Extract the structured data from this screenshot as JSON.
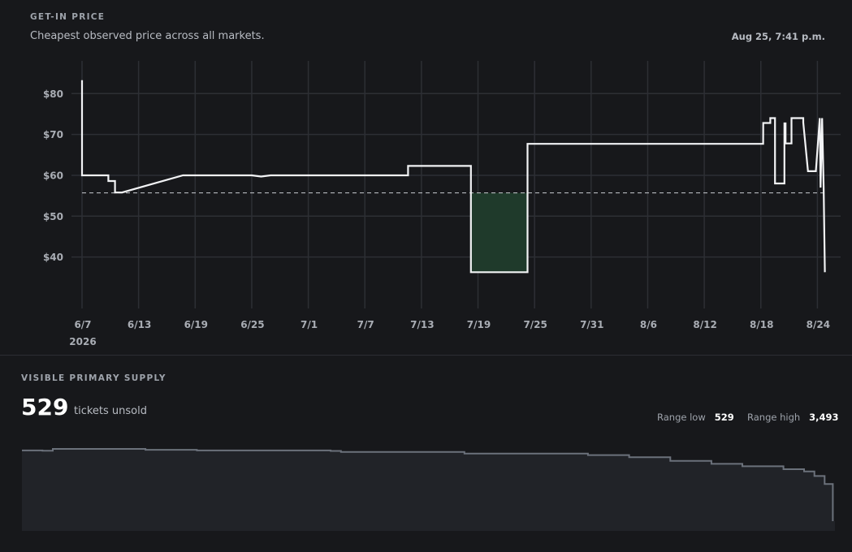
{
  "price_section": {
    "label": "GET-IN PRICE",
    "subtitle": "Cheapest observed price across all markets.",
    "timestamp": "Aug 25, 7:41 p.m."
  },
  "supply_section": {
    "label": "VISIBLE PRIMARY SUPPLY",
    "count": "529",
    "unit": "tickets unsold",
    "range_low_label": "Range low",
    "range_low_value": "529",
    "range_high_label": "Range high",
    "range_high_value": "3,493"
  },
  "chart_data": [
    {
      "type": "line",
      "name": "get-in-price",
      "x_unit": "date",
      "year": "2026",
      "x_range": [
        "2026-06-07",
        "2026-08-25"
      ],
      "ylim": [
        30,
        88
      ],
      "y_ticks": [
        40,
        50,
        60,
        70,
        80
      ],
      "y_tick_labels": [
        "$40",
        "$50",
        "$60",
        "$70",
        "$80"
      ],
      "x_ticks": [
        "2026-06-07",
        "2026-06-13",
        "2026-06-19",
        "2026-06-25",
        "2026-07-01",
        "2026-07-07",
        "2026-07-13",
        "2026-07-19",
        "2026-07-25",
        "2026-07-31",
        "2026-08-06",
        "2026-08-12",
        "2026-08-18",
        "2026-08-24"
      ],
      "x_tick_labels": [
        "6/7",
        "6/13",
        "6/19",
        "6/25",
        "7/1",
        "7/7",
        "7/13",
        "7/19",
        "7/25",
        "7/31",
        "8/6",
        "8/12",
        "8/18",
        "8/24"
      ],
      "grid": true,
      "reference_line": 55.7,
      "highlight_range": [
        "2026-07-18",
        "2026-07-24"
      ],
      "points": [
        [
          "2026-06-07T00:00",
          83.3
        ],
        [
          "2026-06-07T00:01",
          60
        ],
        [
          "2026-06-09T19:00",
          60
        ],
        [
          "2026-06-09T19:01",
          58.6
        ],
        [
          "2026-06-10T12:00",
          58.6
        ],
        [
          "2026-06-10T12:01",
          55.8
        ],
        [
          "2026-06-11T06:00",
          55.8
        ],
        [
          "2026-06-17T17:00",
          60
        ],
        [
          "2026-06-25T00:00",
          60
        ],
        [
          "2026-06-26T00:00",
          59.7
        ],
        [
          "2026-06-27T00:00",
          60
        ],
        [
          "2026-07-11T14:00",
          60
        ],
        [
          "2026-07-11T14:01",
          62.3
        ],
        [
          "2026-07-18T06:00",
          62.3
        ],
        [
          "2026-07-18T06:01",
          36.3
        ],
        [
          "2026-07-24T06:00",
          36.3
        ],
        [
          "2026-07-24T06:01",
          67.7
        ],
        [
          "2026-08-18T06:00",
          67.7
        ],
        [
          "2026-08-18T06:01",
          72.8
        ],
        [
          "2026-08-19T00:00",
          72.8
        ],
        [
          "2026-08-19T00:01",
          74
        ],
        [
          "2026-08-19T12:00",
          74
        ],
        [
          "2026-08-19T12:01",
          58
        ],
        [
          "2026-08-20T12:00",
          58
        ],
        [
          "2026-08-20T12:01",
          72.7
        ],
        [
          "2026-08-20T15:00",
          72.7
        ],
        [
          "2026-08-20T15:01",
          67.8
        ],
        [
          "2026-08-21T06:00",
          67.8
        ],
        [
          "2026-08-21T06:01",
          74
        ],
        [
          "2026-08-22T12:00",
          74
        ],
        [
          "2026-08-22T12:01",
          72.9
        ],
        [
          "2026-08-23T00:00",
          61
        ],
        [
          "2026-08-23T20:00",
          61
        ],
        [
          "2026-08-24T06:00",
          74
        ],
        [
          "2026-08-24T08:00",
          57
        ],
        [
          "2026-08-24T12:00",
          74
        ],
        [
          "2026-08-24T16:00",
          57
        ],
        [
          "2026-08-24T19:00",
          36.3
        ]
      ]
    },
    {
      "type": "area",
      "name": "visible-primary-supply",
      "x_range": [
        "2026-06-07",
        "2026-08-25"
      ],
      "range_low": 529,
      "range_high": 3493,
      "points": [
        [
          "2026-06-07",
          3430
        ],
        [
          "2026-06-09",
          3415
        ],
        [
          "2026-06-10",
          3493
        ],
        [
          "2026-06-18",
          3493
        ],
        [
          "2026-06-19",
          3455
        ],
        [
          "2026-06-24",
          3430
        ],
        [
          "2026-07-07",
          3410
        ],
        [
          "2026-07-08",
          3370
        ],
        [
          "2026-07-20",
          3300
        ],
        [
          "2026-08-01",
          3240
        ],
        [
          "2026-08-05",
          3150
        ],
        [
          "2026-08-09",
          3000
        ],
        [
          "2026-08-13",
          2880
        ],
        [
          "2026-08-16",
          2780
        ],
        [
          "2026-08-20",
          2660
        ],
        [
          "2026-08-22",
          2570
        ],
        [
          "2026-08-23",
          2380
        ],
        [
          "2026-08-24",
          2050
        ],
        [
          "2026-08-24T19:00",
          529
        ]
      ]
    }
  ]
}
